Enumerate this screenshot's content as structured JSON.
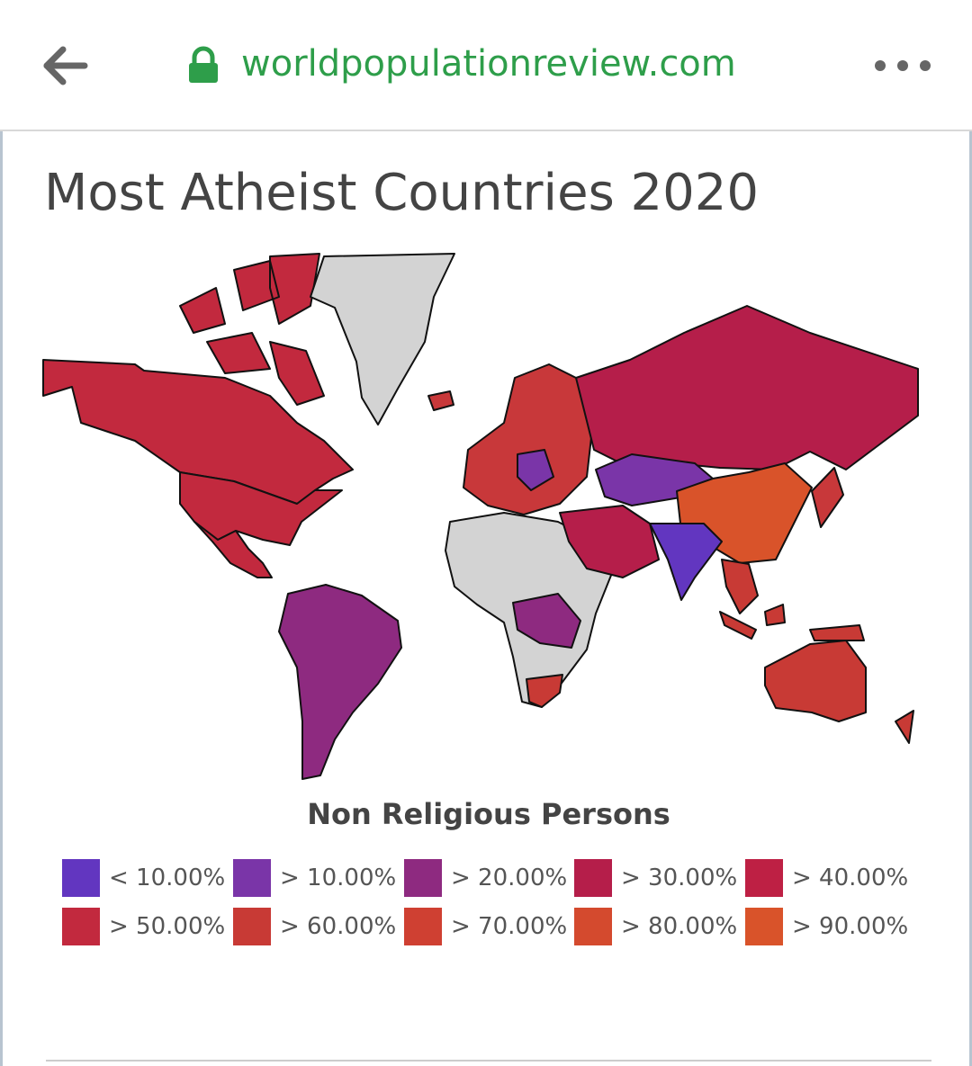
{
  "browser": {
    "url": "worldpopulationreview.com"
  },
  "page": {
    "title": "Most Atheist Countries 2020"
  },
  "legend": {
    "title": "Non Religious Persons",
    "items": [
      {
        "label": "< 10.00%",
        "color": "#6236c0"
      },
      {
        "label": "> 10.00%",
        "color": "#7a35a8"
      },
      {
        "label": "> 20.00%",
        "color": "#8e2a80"
      },
      {
        "label": "> 30.00%",
        "color": "#b51e4a"
      },
      {
        "label": "> 40.00%",
        "color": "#be2044"
      },
      {
        "label": "> 50.00%",
        "color": "#c2293e"
      },
      {
        "label": "> 60.00%",
        "color": "#c83a35"
      },
      {
        "label": "> 70.00%",
        "color": "#cf4032"
      },
      {
        "label": "> 80.00%",
        "color": "#d44a2e"
      },
      {
        "label": "> 90.00%",
        "color": "#d9532a"
      }
    ]
  }
}
